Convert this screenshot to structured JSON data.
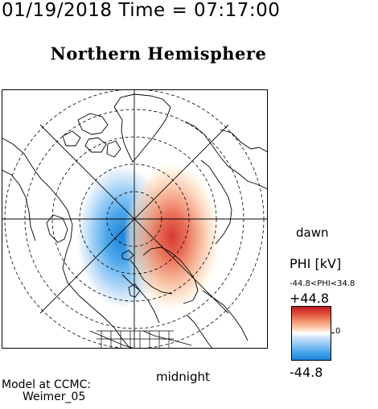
{
  "header": {
    "timestamp": "01/19/2018 Time = 07:17:00",
    "hemisphere_title": "Northern Hemisphere"
  },
  "map": {
    "projection": "polar stereographic, north pole centered",
    "orientation_labels": {
      "dawn": "dawn",
      "midnight": "midnight",
      "noon": "",
      "dusk": ""
    },
    "potential_pattern": {
      "negative_cell_side": "dusk",
      "positive_cell_side": "dawn"
    }
  },
  "legend": {
    "title": "PHI [kV]",
    "range_text": "-44.8<PHI<34.8",
    "max_label": "+44.8",
    "min_label": "-44.8",
    "zero_label": "0",
    "colors": {
      "max": "#c11e23",
      "mid": "#ffffff",
      "min": "#1d83d8"
    }
  },
  "footer": {
    "model_line1": "Model at CCMC:",
    "model_line2": "Weimer_05"
  }
}
